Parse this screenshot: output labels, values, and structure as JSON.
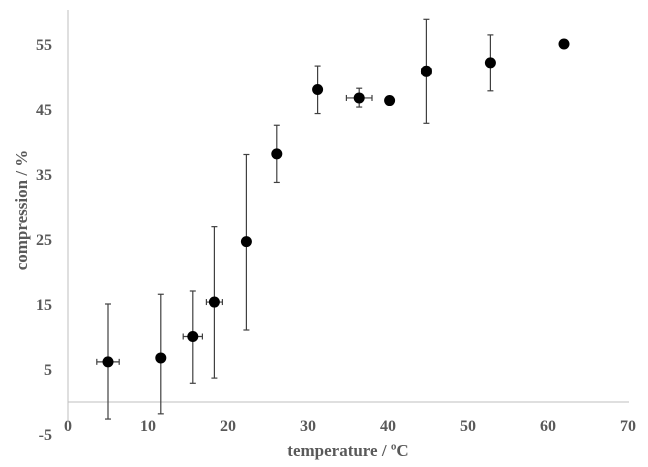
{
  "chart_data": {
    "type": "scatter",
    "title": "",
    "xlabel": "temperature / ºC",
    "ylabel": "compression / %",
    "xlim": [
      0,
      70
    ],
    "ylim": [
      -5,
      60
    ],
    "x_ticks": [
      0,
      10,
      20,
      30,
      40,
      50,
      60,
      70
    ],
    "y_ticks": [
      -5,
      5,
      15,
      25,
      35,
      45,
      55
    ],
    "grid": false,
    "legend": null,
    "series": [
      {
        "name": "compression",
        "marker": "filled-circle",
        "color": "#000000",
        "points": [
          {
            "x": 5.0,
            "y": 6.1,
            "y_err_low": 8.8,
            "y_err_high": 8.9,
            "x_err": 1.4
          },
          {
            "x": 11.6,
            "y": 6.7,
            "y_err_low": 8.6,
            "y_err_high": 9.8,
            "x_err": 0
          },
          {
            "x": 15.6,
            "y": 10.0,
            "y_err_low": 7.2,
            "y_err_high": 7.0,
            "x_err": 1.2
          },
          {
            "x": 18.3,
            "y": 15.3,
            "y_err_low": 11.7,
            "y_err_high": 11.6,
            "x_err": 1.0
          },
          {
            "x": 22.3,
            "y": 24.6,
            "y_err_low": 13.6,
            "y_err_high": 13.4,
            "x_err": 0
          },
          {
            "x": 26.1,
            "y": 38.1,
            "y_err_low": 4.4,
            "y_err_high": 4.4,
            "x_err": 0.5
          },
          {
            "x": 31.2,
            "y": 48.0,
            "y_err_low": 3.7,
            "y_err_high": 3.6,
            "x_err": 0
          },
          {
            "x": 36.4,
            "y": 46.7,
            "y_err_low": 1.4,
            "y_err_high": 1.5,
            "x_err": 1.6
          },
          {
            "x": 40.2,
            "y": 46.3,
            "y_err_low": 0,
            "y_err_high": 0,
            "x_err": 0
          },
          {
            "x": 44.8,
            "y": 50.8,
            "y_err_low": 8.0,
            "y_err_high": 8.0,
            "x_err": 0.6
          },
          {
            "x": 52.8,
            "y": 52.1,
            "y_err_low": 4.3,
            "y_err_high": 4.3,
            "x_err": 0
          },
          {
            "x": 62.0,
            "y": 55.0,
            "y_err_low": 0,
            "y_err_high": 0,
            "x_err": 0
          }
        ]
      }
    ]
  },
  "labels": {
    "xlabel": "temperature / ºC",
    "ylabel": "compression / %"
  }
}
